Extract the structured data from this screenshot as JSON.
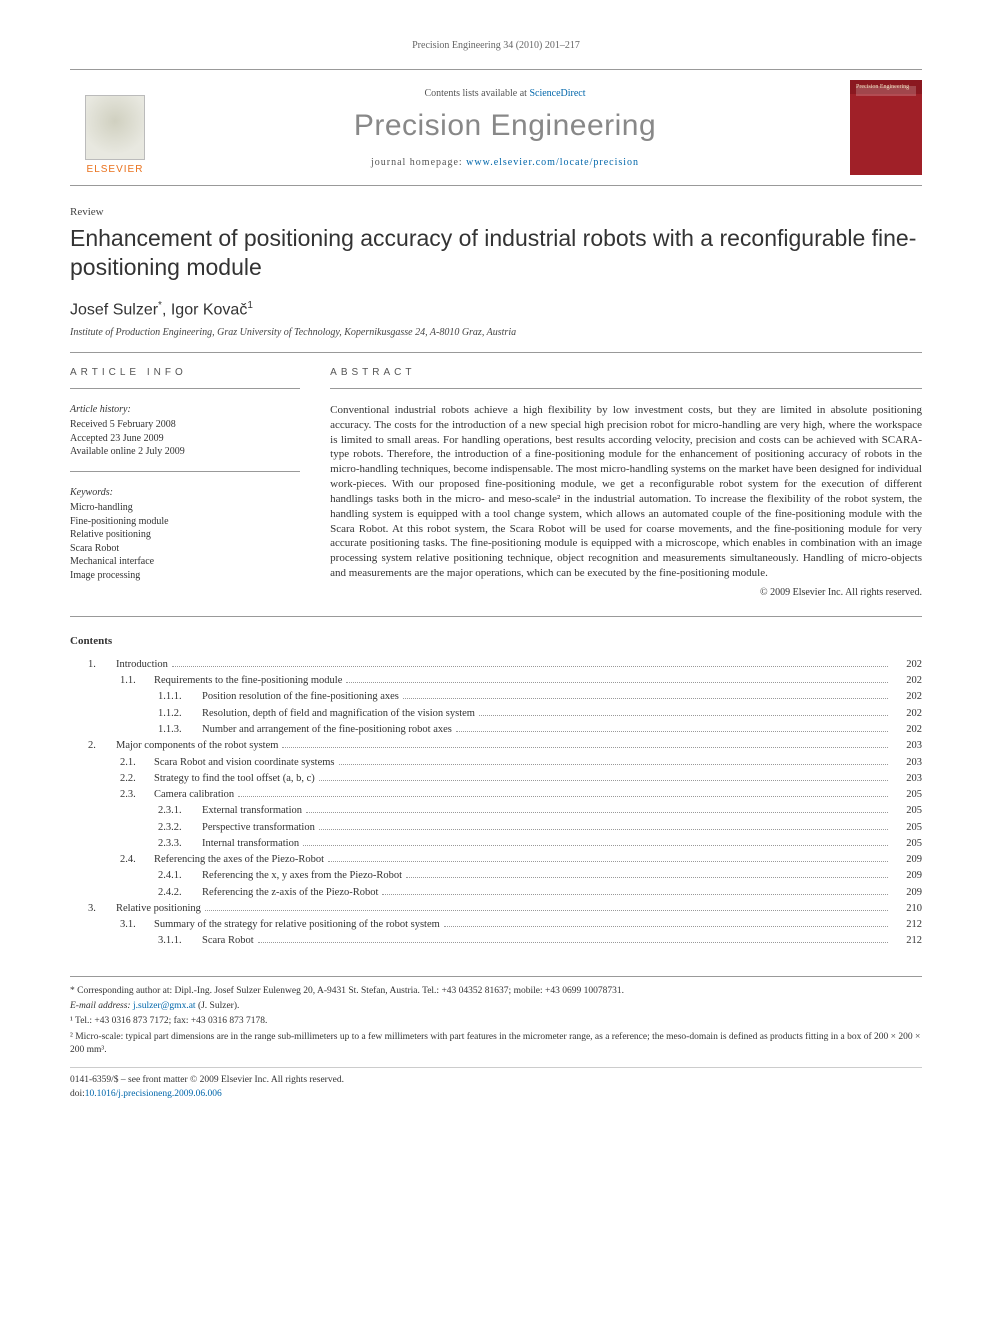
{
  "running_header": "Precision Engineering 34 (2010) 201–217",
  "masthead": {
    "contents_prefix": "Contents lists available at ",
    "contents_link": "ScienceDirect",
    "journal_name": "Precision Engineering",
    "homepage_prefix": "journal homepage: ",
    "homepage_url": "www.elsevier.com/locate/precision",
    "publisher": "ELSEVIER",
    "cover_label": "Precision Engineering"
  },
  "article": {
    "type": "Review",
    "title": "Enhancement of positioning accuracy of industrial robots with a reconfigurable fine-positioning module",
    "author1_name": "Josef Sulzer",
    "author1_marks": "*",
    "author_sep": ", ",
    "author2_name": "Igor Kovač",
    "author2_marks": "1",
    "affiliation": "Institute of Production Engineering, Graz University of Technology, Kopernikusgasse 24, A-8010 Graz, Austria"
  },
  "info": {
    "heading": "article info",
    "history_title": "Article history:",
    "received": "Received 5 February 2008",
    "accepted": "Accepted 23 June 2009",
    "online": "Available online 2 July 2009",
    "keywords_title": "Keywords:",
    "kw1": "Micro-handling",
    "kw2": "Fine-positioning module",
    "kw3": "Relative positioning",
    "kw4": "Scara Robot",
    "kw5": "Mechanical interface",
    "kw6": "Image processing"
  },
  "abstract": {
    "heading": "abstract",
    "text": "Conventional industrial robots achieve a high flexibility by low investment costs, but they are limited in absolute positioning accuracy. The costs for the introduction of a new special high precision robot for micro-handling are very high, where the workspace is limited to small areas. For handling operations, best results according velocity, precision and costs can be achieved with SCARA-type robots. Therefore, the introduction of a fine-positioning module for the enhancement of positioning accuracy of robots in the micro-handling techniques, become indispensable. The most micro-handling systems on the market have been designed for individual work-pieces. With our proposed fine-positioning module, we get a reconfigurable robot system for the execution of different handlings tasks both in the micro- and meso-scale² in the industrial automation. To increase the flexibility of the robot system, the handling system is equipped with a tool change system, which allows an automated couple of the fine-positioning module with the Scara Robot. At this robot system, the Scara Robot will be used for coarse movements, and the fine-positioning module for very accurate positioning tasks. The fine-positioning module is equipped with a microscope, which enables in combination with an image processing system relative positioning technique, object recognition and measurements simultaneously. Handling of micro-objects and measurements are the major operations, which can be executed by the fine-positioning module.",
    "copyright": "© 2009 Elsevier Inc. All rights reserved."
  },
  "contents_heading": "Contents",
  "toc": [
    {
      "level": 1,
      "num": "1.",
      "title": "Introduction",
      "page": "202"
    },
    {
      "level": 2,
      "num": "1.1.",
      "title": "Requirements to the fine-positioning module",
      "page": "202"
    },
    {
      "level": 3,
      "num": "1.1.1.",
      "title": "Position resolution of the fine-positioning axes",
      "page": "202"
    },
    {
      "level": 3,
      "num": "1.1.2.",
      "title": "Resolution, depth of field and magnification of the vision system",
      "page": "202"
    },
    {
      "level": 3,
      "num": "1.1.3.",
      "title": "Number and arrangement of the fine-positioning robot axes",
      "page": "202"
    },
    {
      "level": 1,
      "num": "2.",
      "title": "Major components of the robot system",
      "page": "203"
    },
    {
      "level": 2,
      "num": "2.1.",
      "title": "Scara Robot and vision coordinate systems",
      "page": "203"
    },
    {
      "level": 2,
      "num": "2.2.",
      "title": "Strategy to find the tool offset (a, b, c)",
      "page": "203"
    },
    {
      "level": 2,
      "num": "2.3.",
      "title": "Camera calibration",
      "page": "205"
    },
    {
      "level": 3,
      "num": "2.3.1.",
      "title": "External transformation",
      "page": "205"
    },
    {
      "level": 3,
      "num": "2.3.2.",
      "title": "Perspective transformation",
      "page": "205"
    },
    {
      "level": 3,
      "num": "2.3.3.",
      "title": "Internal transformation",
      "page": "205"
    },
    {
      "level": 2,
      "num": "2.4.",
      "title": "Referencing the axes of the Piezo-Robot",
      "page": "209"
    },
    {
      "level": 3,
      "num": "2.4.1.",
      "title": "Referencing the x, y axes from the Piezo-Robot",
      "page": "209"
    },
    {
      "level": 3,
      "num": "2.4.2.",
      "title": "Referencing the z-axis of the Piezo-Robot",
      "page": "209"
    },
    {
      "level": 1,
      "num": "3.",
      "title": "Relative positioning",
      "page": "210"
    },
    {
      "level": 2,
      "num": "3.1.",
      "title": "Summary of the strategy for relative positioning of the robot system",
      "page": "212"
    },
    {
      "level": 3,
      "num": "3.1.1.",
      "title": "Scara Robot",
      "page": "212"
    }
  ],
  "footnotes": {
    "corr": "* Corresponding author at: Dipl.-Ing. Josef Sulzer Eulenweg 20, A-9431 St. Stefan, Austria. Tel.: +43 04352 81637; mobile: +43 0699 10078731.",
    "email_label": "E-mail address: ",
    "email": "j.sulzer@gmx.at",
    "email_suffix": " (J. Sulzer).",
    "fn1": "¹ Tel.: +43 0316 873 7172; fax: +43 0316 873 7178.",
    "fn2": "² Micro-scale: typical part dimensions are in the range sub-millimeters up to a few millimeters with part features in the micrometer range, as a reference; the meso-domain is defined as products fitting in a box of 200 × 200 × 200 mm³."
  },
  "footer": {
    "issn_line": "0141-6359/$ – see front matter © 2009 Elsevier Inc. All rights reserved.",
    "doi_prefix": "doi:",
    "doi": "10.1016/j.precisioneng.2009.06.006"
  },
  "colors": {
    "link": "#0066aa",
    "publisher": "#e9711c",
    "journal_gray": "#888888",
    "rule": "#999999",
    "journal_cover": "#a02028"
  },
  "typography": {
    "body_fontsize_pt": 9,
    "title_fontsize_pt": 17,
    "journal_name_fontsize_pt": 22,
    "authors_fontsize_pt": 12
  }
}
